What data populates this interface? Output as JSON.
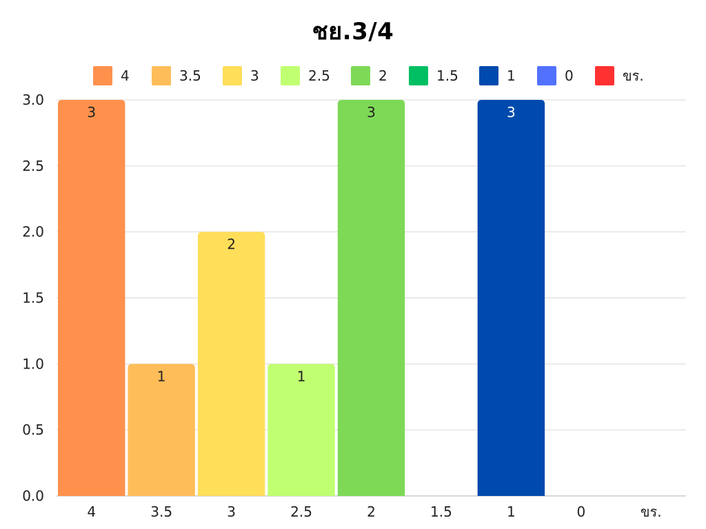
{
  "chart_data": {
    "type": "bar",
    "title": "ชย.3/4",
    "xlabel": "",
    "ylabel": "",
    "categories": [
      "4",
      "3.5",
      "3",
      "2.5",
      "2",
      "1.5",
      "1",
      "0",
      "ขร."
    ],
    "values": [
      3,
      1,
      2,
      1,
      3,
      0,
      3,
      0,
      0
    ],
    "colors": [
      "#ff914d",
      "#ffbd59",
      "#ffde59",
      "#c1ff72",
      "#7ed957",
      "#00bf63",
      "#004aad",
      "#5271ff",
      "#ff3131"
    ],
    "label_colors": [
      "#222222",
      "#222222",
      "#222222",
      "#222222",
      "#222222",
      "#222222",
      "#ffffff",
      "#222222",
      "#222222"
    ],
    "ylim": [
      0,
      3
    ],
    "yticks": [
      "0.0",
      "0.5",
      "1.0",
      "1.5",
      "2.0",
      "2.5",
      "3.0"
    ],
    "ytick_values": [
      0,
      0.5,
      1,
      1.5,
      2,
      2.5,
      3
    ],
    "grid": true,
    "legend": {
      "position": "top",
      "entries": [
        "4",
        "3.5",
        "3",
        "2.5",
        "2",
        "1.5",
        "1",
        "0",
        "ขร."
      ]
    }
  }
}
